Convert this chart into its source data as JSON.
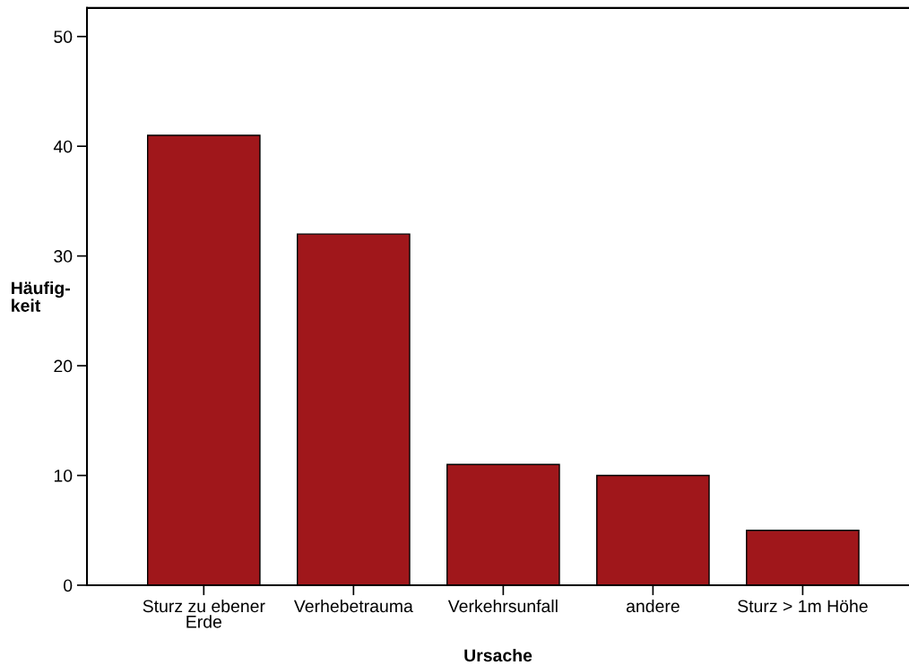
{
  "chart_data": {
    "type": "bar",
    "xlabel": "Ursache",
    "ylabel": "Häufig-\nkeit",
    "categories": [
      "Sturz zu ebener\nErde",
      "Verhebetrauma",
      "Verkehrsunfall",
      "andere",
      "Sturz > 1m Höhe"
    ],
    "values": [
      41,
      32,
      11,
      10,
      5
    ],
    "color": "#a0171b",
    "ylim": [
      0,
      52.6
    ],
    "yticks": [
      0,
      10,
      20,
      30,
      40,
      50
    ],
    "grid": false
  }
}
